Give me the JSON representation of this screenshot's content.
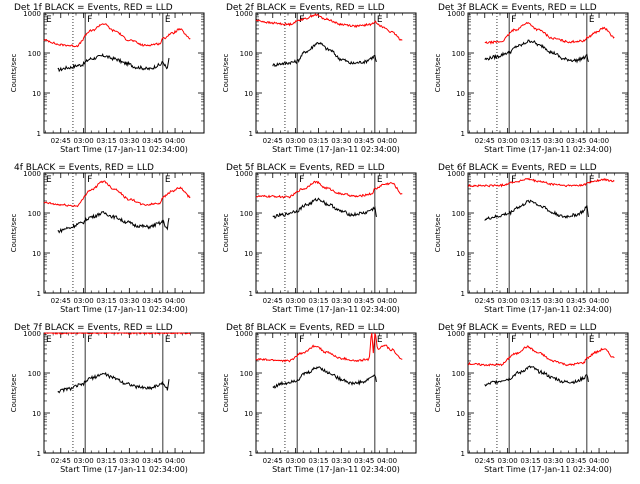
{
  "chart_data": [
    {
      "type": "line",
      "title": "Det 1f BLACK = Events, RED = LLD",
      "xlabel": "Start Time (17-Jan-11 02:34:00)",
      "ylabel": "Counts/sec",
      "x_ticks": [
        "02:45",
        "03:00",
        "03:15",
        "03:30",
        "03:45",
        "04:00"
      ],
      "y_ticks": [
        "1",
        "10",
        "100",
        "1000"
      ],
      "y_scale": "log",
      "ylim": [
        1,
        1000
      ],
      "markers": [
        {
          "time": "02:53",
          "style": "dotted"
        },
        {
          "time": "03:01",
          "style": "solid",
          "label": "F"
        },
        {
          "time": "03:52",
          "style": "solid",
          "label": "E"
        }
      ],
      "corner_label": "E",
      "red_level": 150,
      "black_level": 45,
      "red_end": 250,
      "black_end": 60,
      "series": [
        {
          "name": "BLACK = Events",
          "color": "#000000",
          "x": [
            "02:43",
            "02:50",
            "02:58",
            "03:05",
            "03:13",
            "03:20",
            "03:28",
            "03:35",
            "03:43",
            "03:50",
            "03:52",
            "03:55",
            "03:56"
          ],
          "y": [
            38,
            43,
            50,
            72,
            85,
            72,
            55,
            44,
            40,
            50,
            58,
            40,
            75
          ]
        },
        {
          "name": "RED = LLD",
          "color": "#ff0000",
          "x": [
            "02:34",
            "02:45",
            "02:55",
            "03:05",
            "03:13",
            "03:20",
            "03:30",
            "03:40",
            "03:50",
            "03:52",
            "03:58",
            "04:03",
            "04:10"
          ],
          "y": [
            210,
            160,
            150,
            360,
            540,
            360,
            210,
            155,
            170,
            230,
            310,
            390,
            230
          ]
        }
      ]
    },
    {
      "type": "line",
      "title": "Det 2f BLACK = Events, RED = LLD",
      "xlabel": "Start Time (17-Jan-11 02:34:00)",
      "ylabel": "Counts/sec",
      "x_ticks": [
        "02:45",
        "03:00",
        "03:15",
        "03:30",
        "03:45",
        "04:00"
      ],
      "y_ticks": [
        "1",
        "10",
        "100",
        "1000"
      ],
      "y_scale": "log",
      "ylim": [
        1,
        1000
      ],
      "markers": [
        {
          "time": "02:53",
          "style": "dotted"
        },
        {
          "time": "03:01",
          "style": "solid",
          "label": "F"
        },
        {
          "time": "03:52",
          "style": "solid",
          "label": "E"
        }
      ],
      "corner_label": "",
      "red_level": 200,
      "black_level": 50,
      "red_end": 220,
      "black_end": 70,
      "series": [
        {
          "name": "BLACK = Events",
          "color": "#000000",
          "x": [
            "02:45",
            "02:52",
            "03:00",
            "03:07",
            "03:15",
            "03:22",
            "03:30",
            "03:37",
            "03:45",
            "03:50",
            "03:52",
            "03:53"
          ],
          "y": [
            50,
            55,
            60,
            110,
            180,
            120,
            70,
            55,
            60,
            75,
            85,
            60
          ]
        },
        {
          "name": "RED = LLD",
          "color": "#ff0000",
          "x": [
            "02:34",
            "02:45",
            "02:55",
            "03:05",
            "03:13",
            "03:20",
            "03:30",
            "03:40",
            "03:50",
            "03:52",
            "03:58",
            "04:03",
            "04:10"
          ],
          "y": [
            650,
            560,
            520,
            700,
            900,
            700,
            520,
            470,
            520,
            600,
            430,
            330,
            210
          ]
        }
      ]
    },
    {
      "type": "line",
      "title": "Det 3f BLACK = Events, RED = LLD",
      "xlabel": "Start Time (17-Jan-11 02:34:00)",
      "ylabel": "Counts/sec",
      "x_ticks": [
        "02:45",
        "03:00",
        "03:15",
        "03:30",
        "03:45",
        "04:00"
      ],
      "y_ticks": [
        "1",
        "10",
        "100",
        "1000"
      ],
      "y_scale": "log",
      "ylim": [
        1,
        1000
      ],
      "markers": [
        {
          "time": "02:53",
          "style": "dotted"
        },
        {
          "time": "03:01",
          "style": "solid",
          "label": "F"
        },
        {
          "time": "03:52",
          "style": "solid",
          "label": "E"
        }
      ],
      "corner_label": "",
      "red_level": 200,
      "black_level": 45,
      "red_end": 250,
      "black_end": 70,
      "series": [
        {
          "name": "BLACK = Events",
          "color": "#000000",
          "x": [
            "02:45",
            "02:52",
            "03:00",
            "03:07",
            "03:15",
            "03:22",
            "03:30",
            "03:37",
            "03:45",
            "03:50",
            "03:52",
            "03:53"
          ],
          "y": [
            70,
            80,
            100,
            150,
            200,
            150,
            100,
            70,
            65,
            75,
            85,
            60
          ]
        },
        {
          "name": "RED = LLD",
          "color": "#ff0000",
          "x": [
            "02:45",
            "02:55",
            "03:05",
            "03:13",
            "03:20",
            "03:30",
            "03:40",
            "03:50",
            "03:52",
            "03:58",
            "04:03",
            "04:10"
          ],
          "y": [
            180,
            190,
            380,
            560,
            380,
            230,
            190,
            200,
            240,
            330,
            420,
            250
          ]
        }
      ]
    },
    {
      "type": "line",
      "title": "4f BLACK = Events, RED = LLD",
      "xlabel": "Start Time (17-Jan-11 02:34:00)",
      "ylabel": "Counts/sec",
      "x_ticks": [
        "02:45",
        "03:00",
        "03:15",
        "03:30",
        "03:45",
        "04:00"
      ],
      "y_ticks": [
        "1",
        "10",
        "100",
        "1000"
      ],
      "y_scale": "log",
      "ylim": [
        1,
        1000
      ],
      "markers": [
        {
          "time": "02:53",
          "style": "dotted"
        },
        {
          "time": "03:01",
          "style": "solid",
          "label": "F"
        },
        {
          "time": "03:52",
          "style": "solid",
          "label": "E"
        }
      ],
      "corner_label": "E",
      "red_level": 150,
      "black_level": 40,
      "red_end": 250,
      "black_end": 60,
      "series": [
        {
          "name": "BLACK = Events",
          "color": "#000000",
          "x": [
            "02:43",
            "02:50",
            "02:58",
            "03:05",
            "03:13",
            "03:20",
            "03:28",
            "03:35",
            "03:43",
            "03:50",
            "03:52",
            "03:55",
            "03:56"
          ],
          "y": [
            35,
            42,
            55,
            80,
            100,
            80,
            60,
            48,
            45,
            55,
            60,
            40,
            75
          ]
        },
        {
          "name": "RED = LLD",
          "color": "#ff0000",
          "x": [
            "02:34",
            "02:45",
            "02:55",
            "03:05",
            "03:13",
            "03:20",
            "03:30",
            "03:40",
            "03:50",
            "03:52",
            "03:58",
            "04:03",
            "04:10"
          ],
          "y": [
            180,
            160,
            150,
            380,
            620,
            400,
            220,
            160,
            175,
            250,
            350,
            420,
            250
          ]
        }
      ]
    },
    {
      "type": "line",
      "title": "Det 5f BLACK = Events, RED = LLD",
      "xlabel": "Start Time (17-Jan-11 02:34:00)",
      "ylabel": "Counts/sec",
      "x_ticks": [
        "02:45",
        "03:00",
        "03:15",
        "03:30",
        "03:45",
        "04:00"
      ],
      "y_ticks": [
        "1",
        "10",
        "100",
        "1000"
      ],
      "y_scale": "log",
      "ylim": [
        1,
        1000
      ],
      "markers": [
        {
          "time": "02:53",
          "style": "dotted"
        },
        {
          "time": "03:01",
          "style": "solid",
          "label": "F"
        },
        {
          "time": "03:52",
          "style": "solid",
          "label": "E"
        }
      ],
      "corner_label": "",
      "red_level": 230,
      "black_level": 70,
      "red_end": 260,
      "black_end": 80,
      "series": [
        {
          "name": "BLACK = Events",
          "color": "#000000",
          "x": [
            "02:45",
            "02:52",
            "03:00",
            "03:07",
            "03:15",
            "03:22",
            "03:30",
            "03:37",
            "03:45",
            "03:50",
            "03:52",
            "03:53"
          ],
          "y": [
            80,
            90,
            110,
            160,
            220,
            160,
            110,
            90,
            100,
            120,
            140,
            80
          ]
        },
        {
          "name": "RED = LLD",
          "color": "#ff0000",
          "x": [
            "02:34",
            "02:45",
            "02:55",
            "03:05",
            "03:13",
            "03:20",
            "03:30",
            "03:40",
            "03:50",
            "03:52",
            "03:58",
            "04:03",
            "04:10"
          ],
          "y": [
            260,
            260,
            250,
            400,
            600,
            420,
            300,
            260,
            300,
            400,
            520,
            560,
            300
          ]
        }
      ]
    },
    {
      "type": "line",
      "title": "Det 6f BLACK = Events, RED = LLD",
      "xlabel": "Start Time (17-Jan-11 02:34:00)",
      "ylabel": "Counts/sec",
      "x_ticks": [
        "02:45",
        "03:00",
        "03:15",
        "03:30",
        "03:45",
        "04:00"
      ],
      "y_ticks": [
        "1",
        "10",
        "100",
        "1000"
      ],
      "y_scale": "log",
      "ylim": [
        1,
        1000
      ],
      "markers": [
        {
          "time": "02:53",
          "style": "dotted"
        },
        {
          "time": "03:01",
          "style": "solid",
          "label": "F"
        },
        {
          "time": "03:52",
          "style": "solid",
          "label": "E"
        }
      ],
      "corner_label": "",
      "red_level": 480,
      "black_level": 70,
      "red_end": 650,
      "black_end": 80,
      "series": [
        {
          "name": "BLACK = Events",
          "color": "#000000",
          "x": [
            "02:45",
            "02:52",
            "03:00",
            "03:07",
            "03:15",
            "03:22",
            "03:30",
            "03:37",
            "03:45",
            "03:50",
            "03:52",
            "03:53"
          ],
          "y": [
            70,
            80,
            95,
            140,
            200,
            150,
            100,
            80,
            90,
            110,
            150,
            80
          ]
        },
        {
          "name": "RED = LLD",
          "color": "#ff0000",
          "x": [
            "02:34",
            "02:45",
            "02:55",
            "03:05",
            "03:13",
            "03:20",
            "03:30",
            "03:40",
            "03:50",
            "03:52",
            "03:58",
            "04:03",
            "04:10"
          ],
          "y": [
            480,
            480,
            490,
            600,
            700,
            620,
            520,
            480,
            500,
            560,
            640,
            680,
            620
          ]
        }
      ]
    },
    {
      "type": "line",
      "title": "Det 7f BLACK = Events, RED = LLD",
      "xlabel": "Start Time (17-Jan-11 02:34:00)",
      "ylabel": "Counts/sec",
      "x_ticks": [
        "02:45",
        "03:00",
        "03:15",
        "03:30",
        "03:45",
        "04:00"
      ],
      "y_ticks": [
        "1",
        "10",
        "100",
        "1000"
      ],
      "y_scale": "log",
      "ylim": [
        1,
        1000
      ],
      "markers": [
        {
          "time": "02:53",
          "style": "dotted"
        },
        {
          "time": "03:01",
          "style": "solid",
          "label": "F"
        },
        {
          "time": "03:52",
          "style": "solid",
          "label": "E"
        }
      ],
      "corner_label": "E",
      "red_level": 1000,
      "black_level": 35,
      "red_end": 1000,
      "black_end": 60,
      "series": [
        {
          "name": "BLACK = Events",
          "color": "#000000",
          "x": [
            "02:43",
            "02:50",
            "02:58",
            "03:05",
            "03:13",
            "03:20",
            "03:28",
            "03:35",
            "03:43",
            "03:50",
            "03:52",
            "03:55",
            "03:56"
          ],
          "y": [
            35,
            40,
            50,
            75,
            95,
            75,
            55,
            45,
            42,
            50,
            55,
            40,
            70
          ]
        },
        {
          "name": "RED = LLD",
          "color": "#ff0000",
          "x": [
            "02:34",
            "02:45",
            "03:00",
            "03:15",
            "03:30",
            "03:45",
            "03:52",
            "04:00",
            "04:10"
          ],
          "y": [
            1000,
            1000,
            1000,
            1000,
            1000,
            1000,
            1000,
            1000,
            1000
          ]
        }
      ]
    },
    {
      "type": "line",
      "title": "Det 8f BLACK = Events, RED = LLD",
      "xlabel": "Start Time (17-Jan-11 02:34:00)",
      "ylabel": "Counts/sec",
      "x_ticks": [
        "02:45",
        "03:00",
        "03:15",
        "03:30",
        "03:45",
        "04:00"
      ],
      "y_ticks": [
        "1",
        "10",
        "100",
        "1000"
      ],
      "y_scale": "log",
      "ylim": [
        1,
        1000
      ],
      "markers": [
        {
          "time": "02:53",
          "style": "dotted"
        },
        {
          "time": "03:01",
          "style": "solid",
          "label": "F"
        },
        {
          "time": "03:52",
          "style": "solid",
          "label": "E"
        }
      ],
      "corner_label": "",
      "red_level": 200,
      "black_level": 45,
      "red_end": 300,
      "black_end": 70,
      "series": [
        {
          "name": "BLACK = Events",
          "color": "#000000",
          "x": [
            "02:45",
            "02:52",
            "03:00",
            "03:07",
            "03:15",
            "03:22",
            "03:30",
            "03:37",
            "03:45",
            "03:50",
            "03:52",
            "03:53"
          ],
          "y": [
            45,
            55,
            65,
            100,
            140,
            100,
            70,
            55,
            60,
            80,
            90,
            60
          ]
        },
        {
          "name": "RED = LLD",
          "color": "#ff0000",
          "x": [
            "02:34",
            "02:45",
            "02:55",
            "03:05",
            "03:13",
            "03:20",
            "03:30",
            "03:40",
            "03:48",
            "03:50",
            "03:51",
            "03:52",
            "03:54",
            "03:58",
            "04:03",
            "04:10"
          ],
          "y": [
            220,
            210,
            200,
            320,
            480,
            330,
            230,
            200,
            220,
            1000,
            300,
            1000,
            400,
            500,
            380,
            220
          ]
        }
      ]
    },
    {
      "type": "line",
      "title": "Det 9f BLACK = Events, RED = LLD",
      "xlabel": "Start Time (17-Jan-11 02:34:00)",
      "ylabel": "Counts/sec",
      "x_ticks": [
        "02:45",
        "03:00",
        "03:15",
        "03:30",
        "03:45",
        "04:00"
      ],
      "y_ticks": [
        "1",
        "10",
        "100",
        "1000"
      ],
      "y_scale": "log",
      "ylim": [
        1,
        1000
      ],
      "markers": [
        {
          "time": "02:53",
          "style": "dotted"
        },
        {
          "time": "03:01",
          "style": "solid",
          "label": "F"
        },
        {
          "time": "03:52",
          "style": "solid",
          "label": "E"
        }
      ],
      "corner_label": "",
      "red_level": 160,
      "black_level": 45,
      "red_end": 250,
      "black_end": 70,
      "series": [
        {
          "name": "BLACK = Events",
          "color": "#000000",
          "x": [
            "02:45",
            "02:52",
            "03:00",
            "03:07",
            "03:15",
            "03:22",
            "03:30",
            "03:37",
            "03:45",
            "03:50",
            "03:52",
            "03:53"
          ],
          "y": [
            50,
            60,
            70,
            100,
            140,
            105,
            75,
            60,
            60,
            75,
            90,
            60
          ]
        },
        {
          "name": "RED = LLD",
          "color": "#ff0000",
          "x": [
            "02:34",
            "02:45",
            "02:55",
            "03:05",
            "03:13",
            "03:20",
            "03:30",
            "03:40",
            "03:50",
            "03:52",
            "03:58",
            "04:03",
            "04:10"
          ],
          "y": [
            170,
            160,
            160,
            300,
            450,
            320,
            200,
            160,
            180,
            240,
            330,
            400,
            240
          ]
        }
      ]
    }
  ]
}
